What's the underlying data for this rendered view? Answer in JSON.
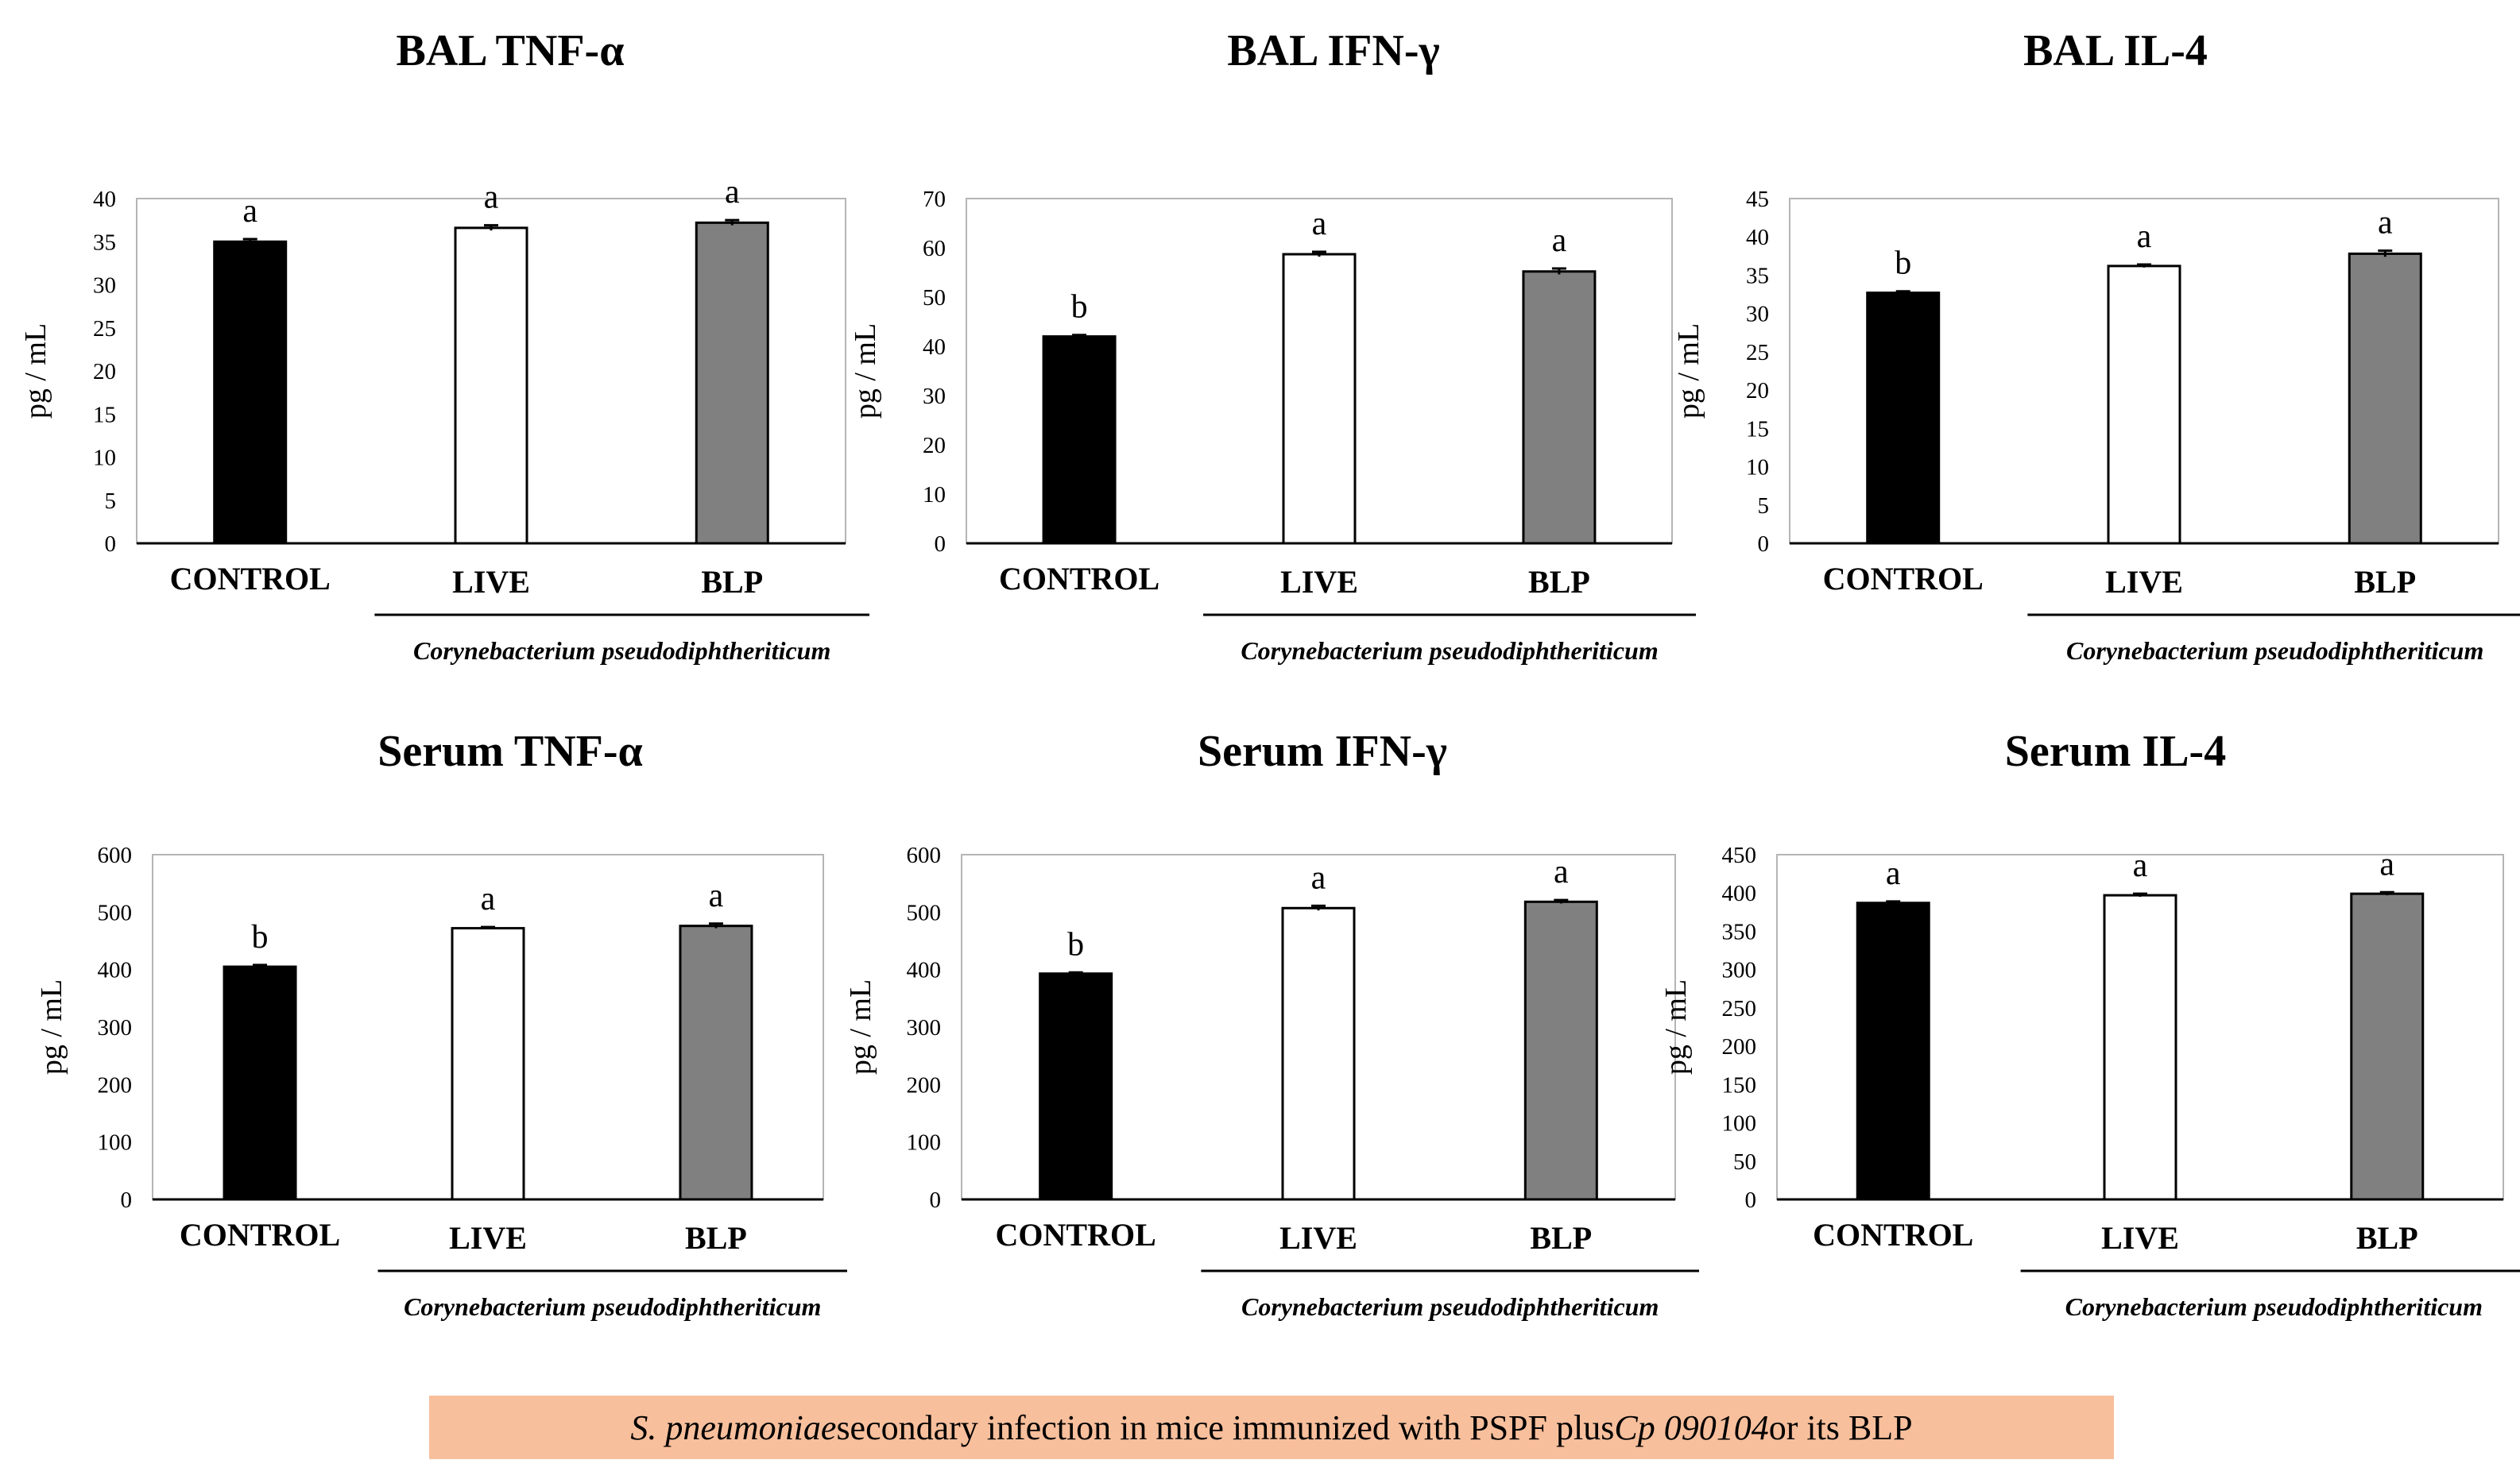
{
  "chart_data": [
    {
      "type": "bar",
      "title": "BAL TNF-α",
      "ylabel": "pg / mL",
      "ylim": [
        0,
        40
      ],
      "yticks": [
        0,
        5,
        10,
        15,
        20,
        25,
        30,
        35,
        40
      ],
      "categories": [
        "CONTROL",
        "LIVE",
        "BLP"
      ],
      "values": [
        35.0,
        36.6,
        37.2
      ],
      "errors": [
        0.3,
        0.3,
        0.3
      ],
      "letters": [
        "a",
        "a",
        "a"
      ],
      "colors": [
        "#000000",
        "#ffffff",
        "#808080"
      ],
      "group_label": "Corynebacterium pseudodiphtheriticum"
    },
    {
      "type": "bar",
      "title": "BAL IFN-γ",
      "ylabel": "pg / mL",
      "ylim": [
        0,
        70
      ],
      "yticks": [
        0,
        10,
        20,
        30,
        40,
        50,
        60,
        70
      ],
      "categories": [
        "CONTROL",
        "LIVE",
        "BLP"
      ],
      "values": [
        42.0,
        58.7,
        55.2
      ],
      "errors": [
        0.3,
        0.5,
        0.6
      ],
      "letters": [
        "b",
        "a",
        "a"
      ],
      "colors": [
        "#000000",
        "#ffffff",
        "#808080"
      ],
      "group_label": "Corynebacterium pseudodiphtheriticum"
    },
    {
      "type": "bar",
      "title": "BAL IL-4",
      "ylabel": "pg / mL",
      "ylim": [
        0,
        45
      ],
      "yticks": [
        0,
        5,
        10,
        15,
        20,
        25,
        30,
        35,
        40,
        45
      ],
      "categories": [
        "CONTROL",
        "LIVE",
        "BLP"
      ],
      "values": [
        32.7,
        36.2,
        37.8
      ],
      "errors": [
        0.2,
        0.2,
        0.4
      ],
      "letters": [
        "b",
        "a",
        "a"
      ],
      "colors": [
        "#000000",
        "#ffffff",
        "#808080"
      ],
      "group_label": "Corynebacterium pseudodiphtheriticum"
    },
    {
      "type": "bar",
      "title": "Serum TNF-α",
      "ylabel": "pg / mL",
      "ylim": [
        0,
        600
      ],
      "yticks": [
        0,
        100,
        200,
        300,
        400,
        500,
        600
      ],
      "categories": [
        "CONTROL",
        "LIVE",
        "BLP"
      ],
      "values": [
        405,
        472,
        476
      ],
      "errors": [
        3,
        2,
        4
      ],
      "letters": [
        "b",
        "a",
        "a"
      ],
      "colors": [
        "#000000",
        "#ffffff",
        "#808080"
      ],
      "group_label": "Corynebacterium pseudodiphtheriticum"
    },
    {
      "type": "bar",
      "title": "Serum IFN-γ",
      "ylabel": "pg / mL",
      "ylim": [
        0,
        600
      ],
      "yticks": [
        0,
        100,
        200,
        300,
        400,
        500,
        600
      ],
      "categories": [
        "CONTROL",
        "LIVE",
        "BLP"
      ],
      "values": [
        393,
        507,
        518
      ],
      "errors": [
        2,
        4,
        3
      ],
      "letters": [
        "b",
        "a",
        "a"
      ],
      "colors": [
        "#000000",
        "#ffffff",
        "#808080"
      ],
      "group_label": "Corynebacterium pseudodiphtheriticum"
    },
    {
      "type": "bar",
      "title": "Serum IL-4",
      "ylabel": "pg / mL",
      "ylim": [
        0,
        450
      ],
      "yticks": [
        0,
        50,
        100,
        150,
        200,
        250,
        300,
        350,
        400,
        450
      ],
      "categories": [
        "CONTROL",
        "LIVE",
        "BLP"
      ],
      "values": [
        387,
        397,
        399
      ],
      "errors": [
        2,
        2,
        2
      ],
      "letters": [
        "a",
        "a",
        "a"
      ],
      "colors": [
        "#000000",
        "#ffffff",
        "#808080"
      ],
      "group_label": "Corynebacterium pseudodiphtheriticum"
    }
  ],
  "footer": {
    "italic_lead": "S. pneumoniae",
    "middle": " secondary infection in mice immunized with PSPF plus ",
    "italic_strain": "Cp 090104",
    "tail": " or its BLP",
    "background": "#f8bf9c"
  }
}
